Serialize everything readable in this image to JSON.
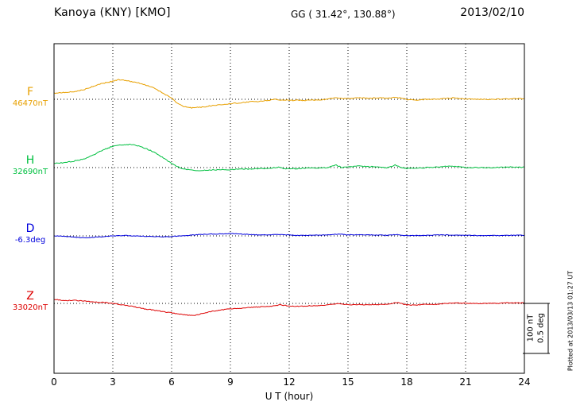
{
  "header": {
    "station": "Kanoya (KNY)  [KMO]",
    "coords": "GG ( 31.42°, 130.88°)",
    "date": "2013/02/10"
  },
  "xaxis": {
    "title": "U T (hour)"
  },
  "scale_bar": {
    "nt_label": "100 nT",
    "deg_label": "0.5 deg"
  },
  "footer_note": "Plotted at 2013/03/13 01:27 UT",
  "chart_data": {
    "type": "line",
    "title": "Kanoya (KNY) [KMO] magnetogram 2013/02/10",
    "xlabel": "U T (hour)",
    "x_range_hours": [
      0,
      24
    ],
    "x_ticks": [
      0,
      3,
      6,
      9,
      12,
      15,
      18,
      21,
      24
    ],
    "grid": "dotted vertical every 3 hours, dotted horizontal baseline per channel",
    "scale": {
      "nT_per_div": 100,
      "deg_per_div": 0.5
    },
    "points_format": "[hour UT, deviation from baseline_value in unit]",
    "series": [
      {
        "name": "F",
        "label": "F",
        "unit": "nT",
        "baseline_label": "46470nT",
        "baseline_value": 46470,
        "color": "#e8a000",
        "points": [
          [
            0,
            12
          ],
          [
            0.5,
            14
          ],
          [
            1,
            15
          ],
          [
            1.5,
            19
          ],
          [
            2,
            26
          ],
          [
            2.5,
            32
          ],
          [
            3,
            36
          ],
          [
            3.3,
            39
          ],
          [
            3.6,
            38
          ],
          [
            4,
            35
          ],
          [
            4.5,
            31
          ],
          [
            5,
            24
          ],
          [
            5.5,
            14
          ],
          [
            6,
            2
          ],
          [
            6.3,
            -8
          ],
          [
            6.6,
            -14
          ],
          [
            7,
            -17
          ],
          [
            7.5,
            -16
          ],
          [
            8,
            -13
          ],
          [
            8.5,
            -11
          ],
          [
            9,
            -9
          ],
          [
            9.5,
            -7
          ],
          [
            10,
            -5
          ],
          [
            10.5,
            -4
          ],
          [
            11,
            -2
          ],
          [
            11.3,
            0
          ],
          [
            11.5,
            -1
          ],
          [
            12,
            -2
          ],
          [
            12.5,
            -2
          ],
          [
            13,
            -2
          ],
          [
            13.5,
            -1
          ],
          [
            14,
            0
          ],
          [
            14.4,
            4
          ],
          [
            14.7,
            1
          ],
          [
            15,
            2
          ],
          [
            15.5,
            3
          ],
          [
            16,
            2
          ],
          [
            16.5,
            3
          ],
          [
            17,
            2
          ],
          [
            17.4,
            4
          ],
          [
            17.8,
            2
          ],
          [
            18,
            0
          ],
          [
            18.5,
            -2
          ],
          [
            19,
            0
          ],
          [
            19.5,
            0
          ],
          [
            20,
            2
          ],
          [
            20.5,
            3
          ],
          [
            21,
            0
          ],
          [
            21.5,
            0
          ],
          [
            22,
            0
          ],
          [
            22.5,
            0
          ],
          [
            23,
            1
          ],
          [
            23.5,
            1
          ],
          [
            24,
            1
          ]
        ]
      },
      {
        "name": "H",
        "label": "H",
        "unit": "nT",
        "baseline_label": "32690nT",
        "baseline_value": 32690,
        "color": "#00c040",
        "points": [
          [
            0,
            8
          ],
          [
            0.5,
            10
          ],
          [
            1,
            13
          ],
          [
            1.5,
            17
          ],
          [
            2,
            25
          ],
          [
            2.5,
            35
          ],
          [
            3,
            43
          ],
          [
            3.5,
            46
          ],
          [
            4,
            46
          ],
          [
            4.5,
            41
          ],
          [
            5,
            33
          ],
          [
            5.5,
            21
          ],
          [
            6,
            8
          ],
          [
            6.5,
            -2
          ],
          [
            7,
            -5
          ],
          [
            7.5,
            -6
          ],
          [
            8,
            -5
          ],
          [
            8.5,
            -4
          ],
          [
            9,
            -4
          ],
          [
            9.5,
            -3
          ],
          [
            10,
            -3
          ],
          [
            10.5,
            -2
          ],
          [
            11,
            -2
          ],
          [
            11.4,
            1
          ],
          [
            11.7,
            -2
          ],
          [
            12,
            -2
          ],
          [
            12.5,
            -2
          ],
          [
            13,
            -1
          ],
          [
            13.5,
            -1
          ],
          [
            14,
            0
          ],
          [
            14.4,
            5
          ],
          [
            14.7,
            0
          ],
          [
            15,
            1
          ],
          [
            15.5,
            3
          ],
          [
            16,
            2
          ],
          [
            16.5,
            1
          ],
          [
            17,
            0
          ],
          [
            17.4,
            5
          ],
          [
            17.8,
            -1
          ],
          [
            18,
            -2
          ],
          [
            18.5,
            -1
          ],
          [
            19,
            0
          ],
          [
            19.5,
            1
          ],
          [
            20,
            2
          ],
          [
            20.5,
            3
          ],
          [
            21,
            0
          ],
          [
            21.5,
            0
          ],
          [
            22,
            0
          ],
          [
            22.5,
            0
          ],
          [
            23,
            1
          ],
          [
            23.5,
            1
          ],
          [
            24,
            1
          ]
        ]
      },
      {
        "name": "D",
        "label": "D",
        "unit": "deg",
        "baseline_label": "-6.3deg",
        "baseline_value": -6.3,
        "color": "#0000dd",
        "points": [
          [
            0,
            0
          ],
          [
            0.5,
            -0.005
          ],
          [
            1,
            -0.012
          ],
          [
            1.5,
            -0.02
          ],
          [
            2,
            -0.015
          ],
          [
            2.5,
            -0.008
          ],
          [
            3,
            0
          ],
          [
            3.5,
            0.004
          ],
          [
            4,
            0
          ],
          [
            4.5,
            -0.004
          ],
          [
            5,
            -0.006
          ],
          [
            5.5,
            -0.01
          ],
          [
            6,
            -0.006
          ],
          [
            6.5,
            0
          ],
          [
            7,
            0.008
          ],
          [
            7.5,
            0.014
          ],
          [
            8,
            0.018
          ],
          [
            8.5,
            0.02
          ],
          [
            9,
            0.024
          ],
          [
            9.5,
            0.02
          ],
          [
            10,
            0.014
          ],
          [
            10.5,
            0.01
          ],
          [
            11,
            0.01
          ],
          [
            11.5,
            0.014
          ],
          [
            12,
            0.01
          ],
          [
            12.5,
            0.004
          ],
          [
            13,
            0.006
          ],
          [
            13.5,
            0.008
          ],
          [
            14,
            0.01
          ],
          [
            14.5,
            0.018
          ],
          [
            15,
            0.01
          ],
          [
            15.5,
            0.012
          ],
          [
            16,
            0.01
          ],
          [
            16.5,
            0.008
          ],
          [
            17,
            0.006
          ],
          [
            17.5,
            0.014
          ],
          [
            18,
            0.002
          ],
          [
            18.5,
            0.004
          ],
          [
            19,
            0.006
          ],
          [
            19.5,
            0.008
          ],
          [
            20,
            0.01
          ],
          [
            20.5,
            0.008
          ],
          [
            21,
            0.006
          ],
          [
            21.5,
            0.004
          ],
          [
            22,
            0.002
          ],
          [
            22.5,
            0.004
          ],
          [
            23,
            0.006
          ],
          [
            23.5,
            0.006
          ],
          [
            24,
            0.006
          ]
        ]
      },
      {
        "name": "Z",
        "label": "Z",
        "unit": "nT",
        "baseline_label": "33020nT",
        "baseline_value": 33020,
        "color": "#dd0000",
        "points": [
          [
            0,
            8
          ],
          [
            0.5,
            6
          ],
          [
            1,
            6
          ],
          [
            1.5,
            5
          ],
          [
            2,
            3
          ],
          [
            2.5,
            2
          ],
          [
            3,
            0
          ],
          [
            3.5,
            -3
          ],
          [
            4,
            -6
          ],
          [
            4.5,
            -10
          ],
          [
            5,
            -13
          ],
          [
            5.5,
            -16
          ],
          [
            6,
            -19
          ],
          [
            6.5,
            -22
          ],
          [
            7,
            -24
          ],
          [
            7.3,
            -23
          ],
          [
            7.6,
            -20
          ],
          [
            8,
            -16
          ],
          [
            8.5,
            -13
          ],
          [
            9,
            -11
          ],
          [
            9.5,
            -10
          ],
          [
            10,
            -8
          ],
          [
            10.5,
            -7
          ],
          [
            11,
            -6
          ],
          [
            11.5,
            -3
          ],
          [
            12,
            -5
          ],
          [
            12.5,
            -6
          ],
          [
            13,
            -5
          ],
          [
            13.5,
            -4
          ],
          [
            14,
            -3
          ],
          [
            14.5,
            0
          ],
          [
            15,
            -3
          ],
          [
            15.5,
            -2
          ],
          [
            16,
            -3
          ],
          [
            16.5,
            -2
          ],
          [
            17,
            -2
          ],
          [
            17.5,
            2
          ],
          [
            18,
            -3
          ],
          [
            18.5,
            -3
          ],
          [
            19,
            -2
          ],
          [
            19.5,
            -2
          ],
          [
            20,
            0
          ],
          [
            20.5,
            1
          ],
          [
            21,
            0
          ],
          [
            21.5,
            0
          ],
          [
            22,
            0
          ],
          [
            22.5,
            0
          ],
          [
            23,
            1
          ],
          [
            23.5,
            1
          ],
          [
            24,
            1
          ]
        ]
      }
    ]
  }
}
